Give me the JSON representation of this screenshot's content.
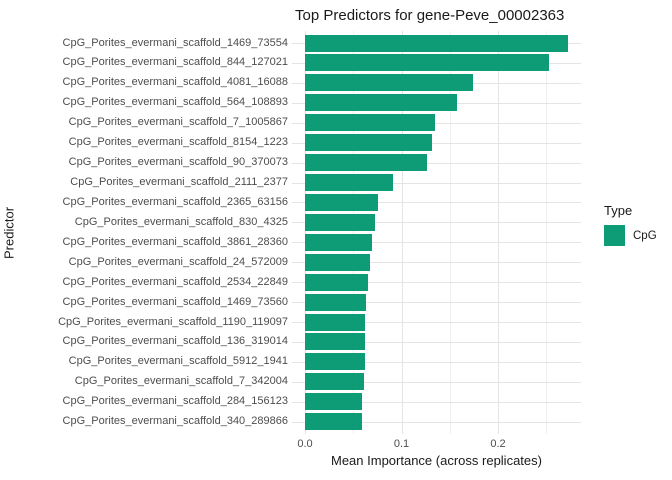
{
  "title": "Top Predictors for gene-Peve_00002363",
  "chart_data": {
    "type": "bar",
    "orientation": "horizontal",
    "title": "Top Predictors for gene-Peve_00002363",
    "xlabel": "Mean Importance (across replicates)",
    "ylabel": "Predictor",
    "categories": [
      "CpG_Porites_evermani_scaffold_1469_73554",
      "CpG_Porites_evermani_scaffold_844_127021",
      "CpG_Porites_evermani_scaffold_4081_16088",
      "CpG_Porites_evermani_scaffold_564_108893",
      "CpG_Porites_evermani_scaffold_7_1005867",
      "CpG_Porites_evermani_scaffold_8154_1223",
      "CpG_Porites_evermani_scaffold_90_370073",
      "CpG_Porites_evermani_scaffold_2111_2377",
      "CpG_Porites_evermani_scaffold_2365_63156",
      "CpG_Porites_evermani_scaffold_830_4325",
      "CpG_Porites_evermani_scaffold_3861_28360",
      "CpG_Porites_evermani_scaffold_24_572009",
      "CpG_Porites_evermani_scaffold_2534_22849",
      "CpG_Porites_evermani_scaffold_1469_73560",
      "CpG_Porites_evermani_scaffold_1190_119097",
      "CpG_Porites_evermani_scaffold_136_319014",
      "CpG_Porites_evermani_scaffold_5912_1941",
      "CpG_Porites_evermani_scaffold_7_342004",
      "CpG_Porites_evermani_scaffold_284_156123",
      "CpG_Porites_evermani_scaffold_340_289866"
    ],
    "values": [
      0.273,
      0.253,
      0.174,
      0.157,
      0.135,
      0.132,
      0.126,
      0.091,
      0.076,
      0.073,
      0.069,
      0.067,
      0.065,
      0.063,
      0.062,
      0.062,
      0.062,
      0.061,
      0.059,
      0.059
    ],
    "series_type_per_bar": "CpG",
    "xlim": [
      -0.0135,
      0.286
    ],
    "xticks": [
      0.0,
      0.1,
      0.2
    ],
    "xtick_labels": [
      "0.0",
      "0.1",
      "0.2"
    ],
    "x_minor_gridlines": [
      0.05,
      0.15,
      0.25
    ],
    "grid": true,
    "legend_position": "right"
  },
  "legend": {
    "title": "Type",
    "items": [
      {
        "label": "CpG",
        "color": "#0D9C76"
      }
    ]
  },
  "colors": {
    "bar": "#0D9C76",
    "grid_major": "#e4e4e4",
    "grid_minor": "#f0f0f0",
    "axis_text": "#4d4d4d",
    "title_text": "#1a1a1a"
  }
}
